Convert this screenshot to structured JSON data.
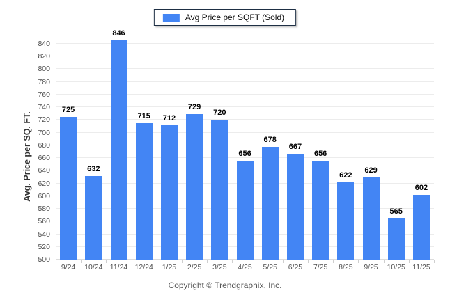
{
  "legend": {
    "label": "Avg Price per SQFT (Sold)",
    "swatch_color": "#4385F4"
  },
  "y_axis": {
    "title": "Avg. Price per SQ. FT."
  },
  "footer": {
    "copyright": "Copyright © Trendgraphix, Inc."
  },
  "chart_data": {
    "type": "bar",
    "title": "Avg Price per SQFT (Sold)",
    "series_name": "Avg Price per SQFT (Sold)",
    "categories": [
      "9/24",
      "10/24",
      "11/24",
      "12/24",
      "1/25",
      "2/25",
      "3/25",
      "4/25",
      "5/25",
      "6/25",
      "7/25",
      "8/25",
      "9/25",
      "10/25",
      "11/25"
    ],
    "values": [
      725,
      632,
      846,
      715,
      712,
      729,
      720,
      656,
      678,
      667,
      656,
      622,
      629,
      565,
      602
    ],
    "xlabel": "",
    "ylabel": "Avg. Price per SQ. FT.",
    "ylim": [
      500,
      860
    ],
    "yticks": [
      500,
      520,
      540,
      560,
      580,
      600,
      620,
      640,
      660,
      680,
      700,
      720,
      740,
      760,
      780,
      800,
      820,
      840
    ],
    "grid": true,
    "legend_position": "top-center",
    "bar_color": "#4385F4",
    "gridline_color": "#ececec"
  }
}
